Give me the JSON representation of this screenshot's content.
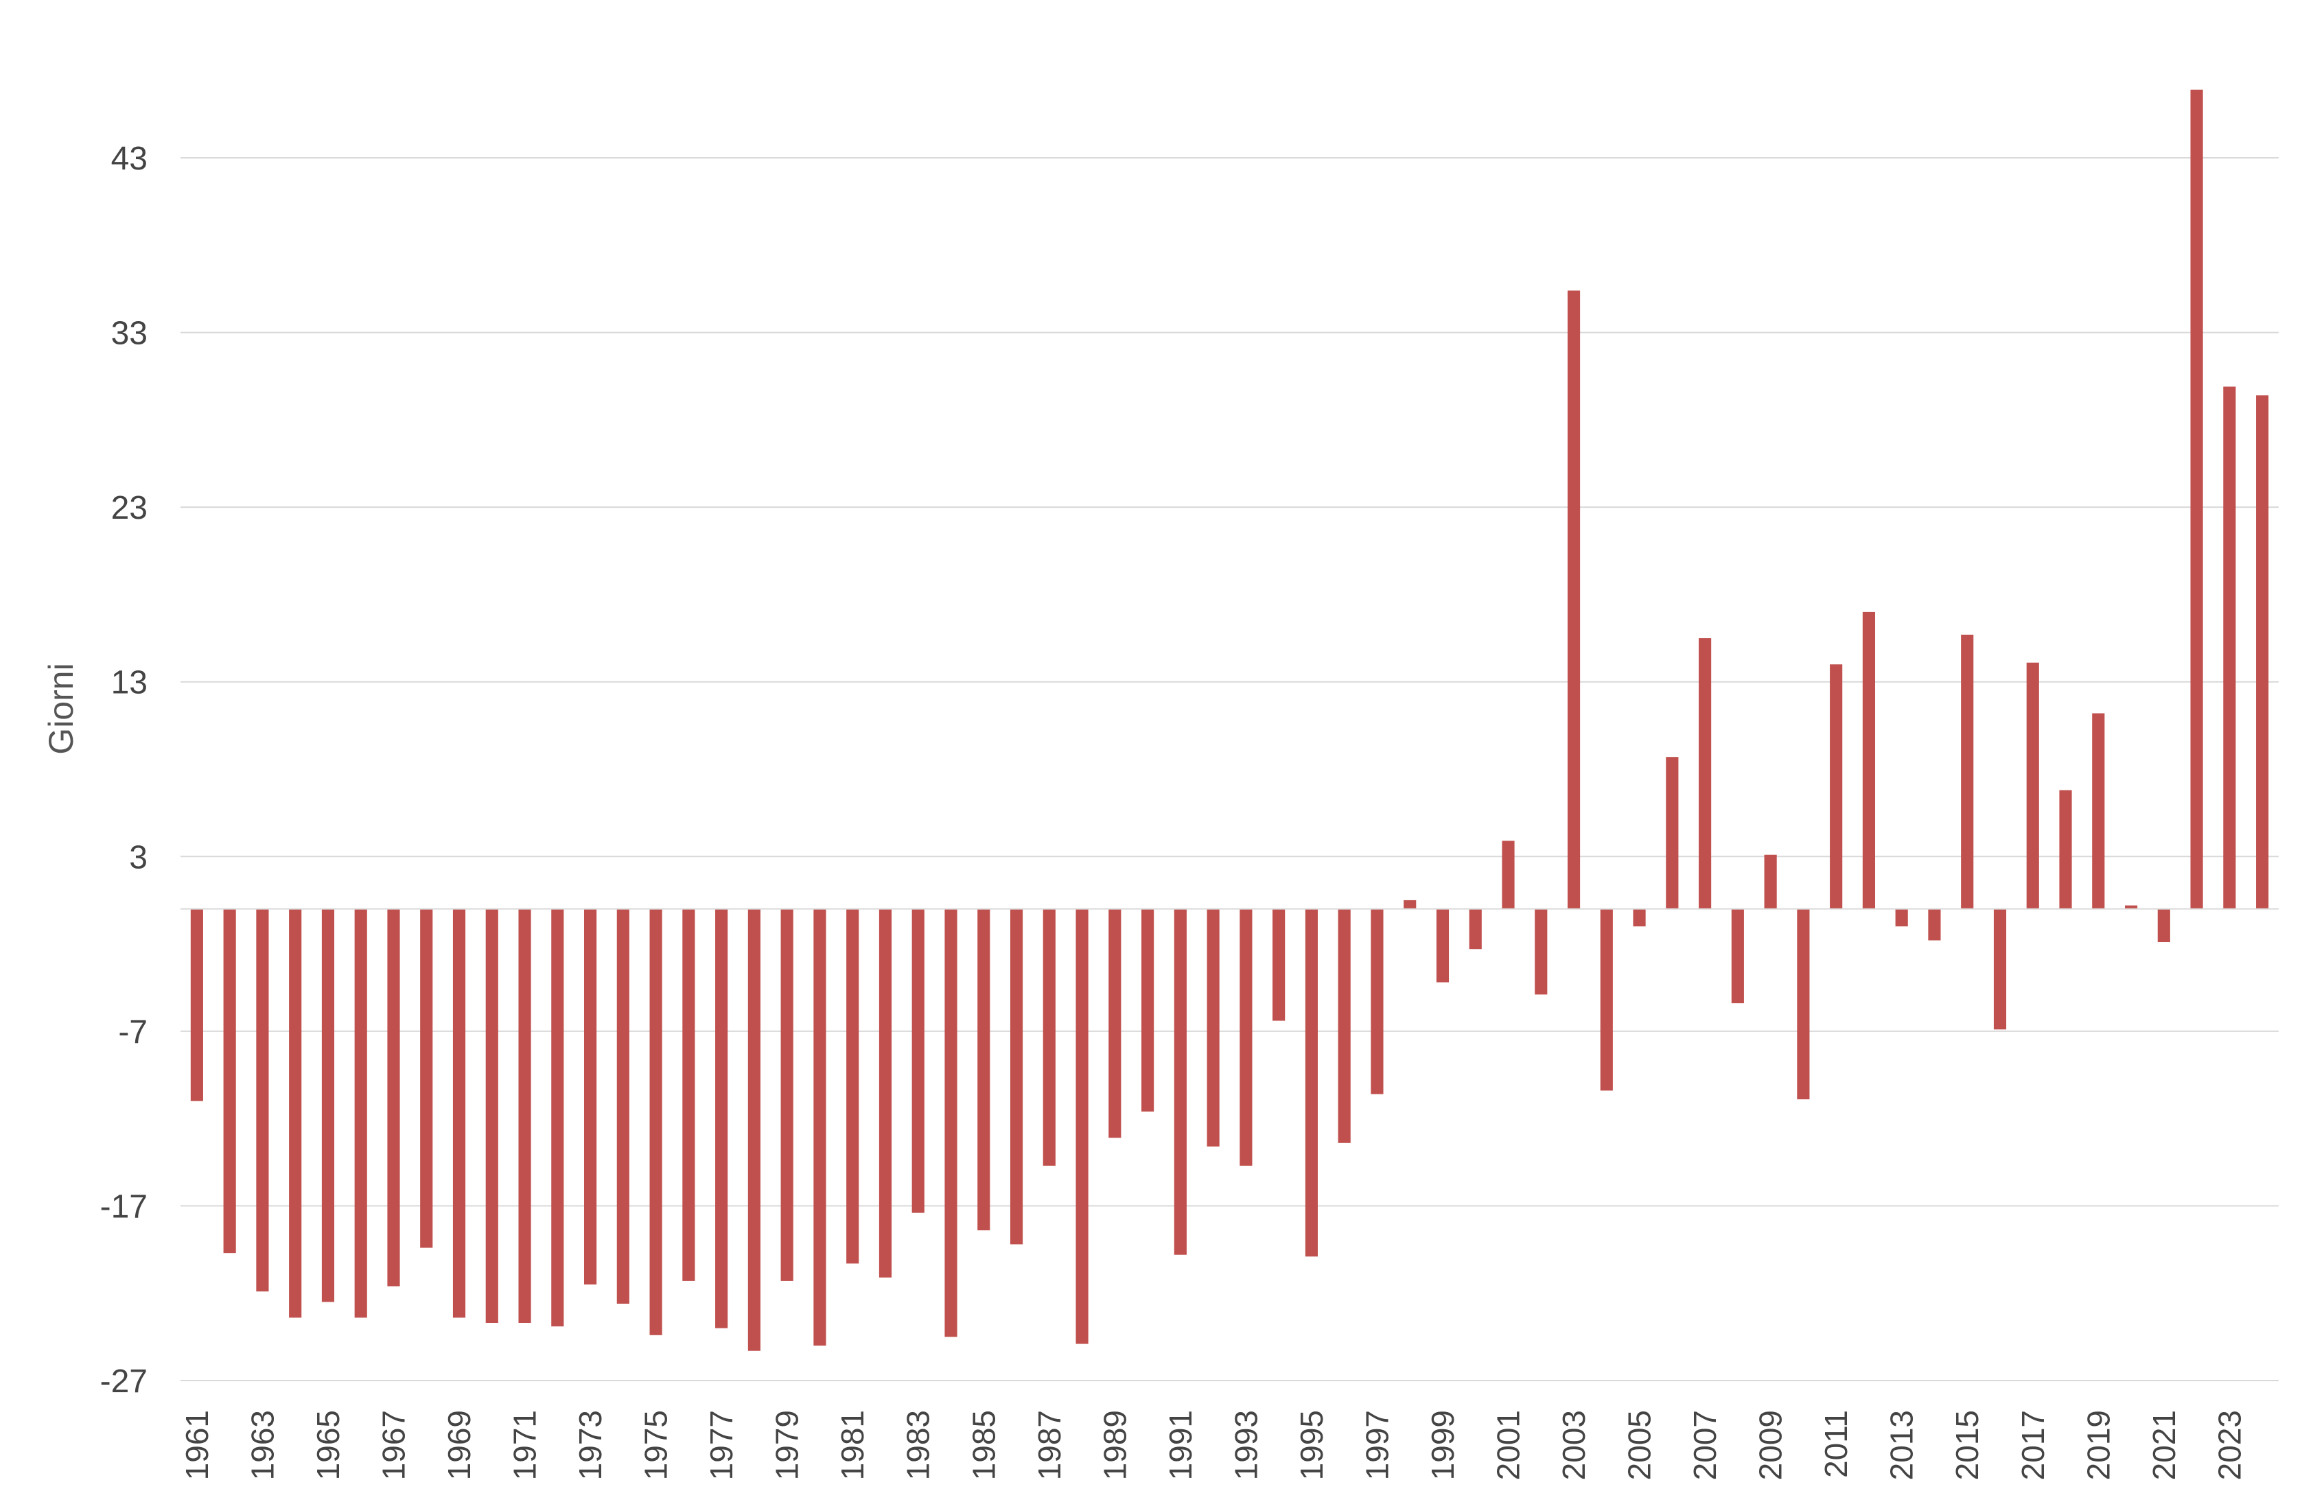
{
  "chart_data": {
    "type": "bar",
    "title": "",
    "xlabel": "",
    "ylabel": "Giorni",
    "ylim": [
      -27,
      47
    ],
    "yticks": [
      43,
      33,
      23,
      13,
      3,
      -7,
      -17,
      -27
    ],
    "grid": true,
    "bar_color": "#c0504d",
    "categories": [
      "1961",
      "1962",
      "1963",
      "1964",
      "1965",
      "1966",
      "1967",
      "1968",
      "1969",
      "1970",
      "1971",
      "1972",
      "1973",
      "1974",
      "1975",
      "1976",
      "1977",
      "1978",
      "1979",
      "1980",
      "1981",
      "1982",
      "1983",
      "1984",
      "1985",
      "1986",
      "1987",
      "1988",
      "1989",
      "1990",
      "1991",
      "1992",
      "1993",
      "1994",
      "1995",
      "1996",
      "1997",
      "1998",
      "1999",
      "2000",
      "2001",
      "2002",
      "2003",
      "2004",
      "2005",
      "2006",
      "2007",
      "2008",
      "2009",
      "2010",
      "2011",
      "2012",
      "2013",
      "2014",
      "2015",
      "2016",
      "2017",
      "2018",
      "2019",
      "2020",
      "2021",
      "2022",
      "2023",
      "2024"
    ],
    "xtick_labels": [
      "1961",
      "1963",
      "1965",
      "1967",
      "1969",
      "1971",
      "1973",
      "1975",
      "1977",
      "1979",
      "1981",
      "1983",
      "1985",
      "1987",
      "1989",
      "1991",
      "1993",
      "1995",
      "1997",
      "1999",
      "2001",
      "2003",
      "2005",
      "2007",
      "2009",
      "2011",
      "2013",
      "2015",
      "2017",
      "2019",
      "2021",
      "2023"
    ],
    "values": [
      -11,
      -19.7,
      -21.9,
      -23.4,
      -22.5,
      -23.4,
      -21.6,
      -19.4,
      -23.4,
      -23.7,
      -23.7,
      -23.9,
      -21.5,
      -22.6,
      -24.4,
      -21.3,
      -24,
      -25.3,
      -21.3,
      -25,
      -20.3,
      -21.1,
      -17.4,
      -24.5,
      -18.4,
      -19.2,
      -14.7,
      -24.9,
      -13.1,
      -11.6,
      -19.8,
      -13.6,
      -14.7,
      -6.4,
      -19.9,
      -13.4,
      -10.6,
      0.5,
      -4.2,
      -2.3,
      3.9,
      -4.9,
      35.4,
      -10.4,
      -1,
      8.7,
      15.5,
      -5.4,
      3.1,
      -10.9,
      14,
      17,
      -1,
      -1.8,
      15.7,
      -6.9,
      14.1,
      6.8,
      11.2,
      0.2,
      -1.9,
      46.9,
      29.9,
      29.4
    ]
  }
}
